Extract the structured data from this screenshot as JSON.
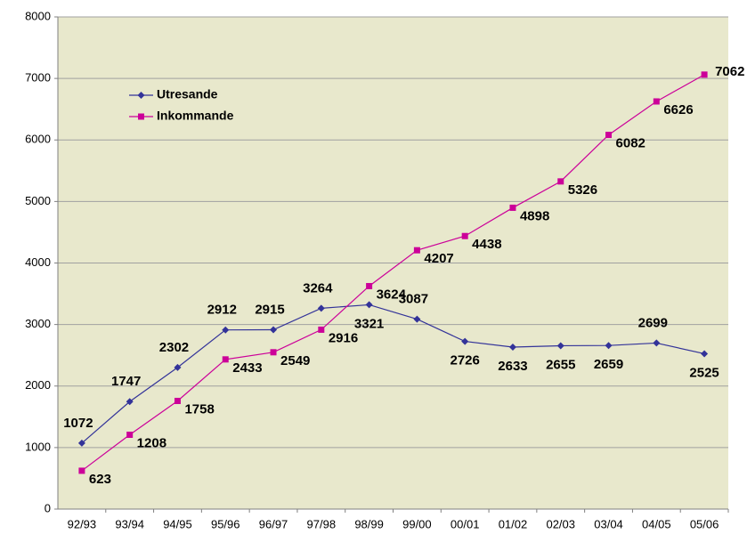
{
  "chart_data": {
    "type": "line",
    "categories": [
      "92/93",
      "93/94",
      "94/95",
      "95/96",
      "96/97",
      "97/98",
      "98/99",
      "99/00",
      "00/01",
      "01/02",
      "02/03",
      "03/04",
      "04/05",
      "05/06"
    ],
    "series": [
      {
        "name": "Utresande",
        "color": "#333399",
        "marker": "diamond",
        "values": [
          1072,
          1747,
          2302,
          2912,
          2915,
          3264,
          3321,
          3087,
          2726,
          2633,
          2655,
          2659,
          2699,
          2525
        ]
      },
      {
        "name": "Inkommande",
        "color": "#cc0099",
        "marker": "square",
        "values": [
          623,
          1208,
          1758,
          2433,
          2549,
          2916,
          3624,
          4207,
          4438,
          4898,
          5326,
          6082,
          6626,
          7062
        ]
      }
    ],
    "ylim": [
      0,
      8000
    ],
    "yticks": [
      0,
      1000,
      2000,
      3000,
      4000,
      5000,
      6000,
      7000,
      8000
    ],
    "grid": true
  }
}
